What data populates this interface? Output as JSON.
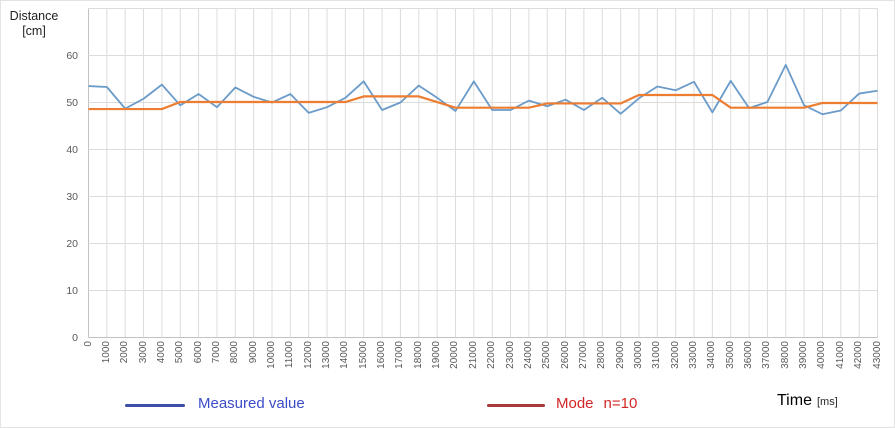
{
  "y_axis_title": {
    "line1": "Distance",
    "line2": "[cm]"
  },
  "x_axis_title": {
    "label": "Time",
    "unit": "[ms]"
  },
  "legend": {
    "measured_label": "Measured value",
    "mode_label": "Mode",
    "mode_param_label": "n=10"
  },
  "colors": {
    "measured_line": "#6b9bc9",
    "mode_line": "#ed7d31",
    "legend_measured_swatch": "#3e4fa8",
    "legend_measured_text": "#3b4cc8",
    "legend_mode_swatch": "#a83a3a",
    "legend_mode_text": "#d32626",
    "gridline": "#dcdcdc",
    "axis_line": "#c2c2c2",
    "tick_label": "#595959"
  },
  "chart_data": {
    "type": "line",
    "title": "",
    "xlabel": "Time [ms]",
    "ylabel": "Distance [cm]",
    "ylim": [
      0,
      70
    ],
    "y_ticks": [
      0,
      10,
      20,
      30,
      40,
      50,
      60
    ],
    "grid": true,
    "legend_position": "bottom",
    "x": [
      0,
      1000,
      2000,
      3000,
      4000,
      5000,
      6000,
      7000,
      8000,
      9000,
      10000,
      11000,
      12000,
      13000,
      14000,
      15000,
      16000,
      17000,
      18000,
      19000,
      20000,
      21000,
      22000,
      23000,
      24000,
      25000,
      26000,
      27000,
      28000,
      29000,
      30000,
      31000,
      32000,
      33000,
      34000,
      35000,
      36000,
      37000,
      38000,
      39000,
      40000,
      41000,
      42000,
      43000
    ],
    "series": [
      {
        "name": "Measured value",
        "values": [
          53.5,
          53.3,
          48.7,
          50.8,
          53.8,
          49.4,
          51.8,
          49.0,
          53.2,
          51.2,
          50.0,
          51.8,
          47.8,
          49.0,
          51.0,
          54.5,
          48.4,
          50.0,
          53.6,
          51.0,
          48.2,
          54.5,
          48.4,
          48.4,
          50.4,
          49.2,
          50.6,
          48.4,
          51.0,
          47.6,
          50.9,
          53.4,
          52.6,
          54.4,
          47.9,
          54.6,
          48.8,
          50.1,
          58.0,
          49.4,
          47.5,
          48.3,
          51.9,
          52.5
        ]
      },
      {
        "name": "Mode n=10",
        "values": [
          48.6,
          48.6,
          48.6,
          48.6,
          48.6,
          50.1,
          50.1,
          50.1,
          50.1,
          50.1,
          50.1,
          50.1,
          50.1,
          50.1,
          50.1,
          51.3,
          51.3,
          51.3,
          51.3,
          50.1,
          48.9,
          48.9,
          48.9,
          48.9,
          48.9,
          49.8,
          49.8,
          49.8,
          49.8,
          49.8,
          51.6,
          51.6,
          51.6,
          51.6,
          51.6,
          48.9,
          48.9,
          48.9,
          48.9,
          48.9,
          49.9,
          49.9,
          49.9,
          49.9
        ]
      }
    ]
  }
}
